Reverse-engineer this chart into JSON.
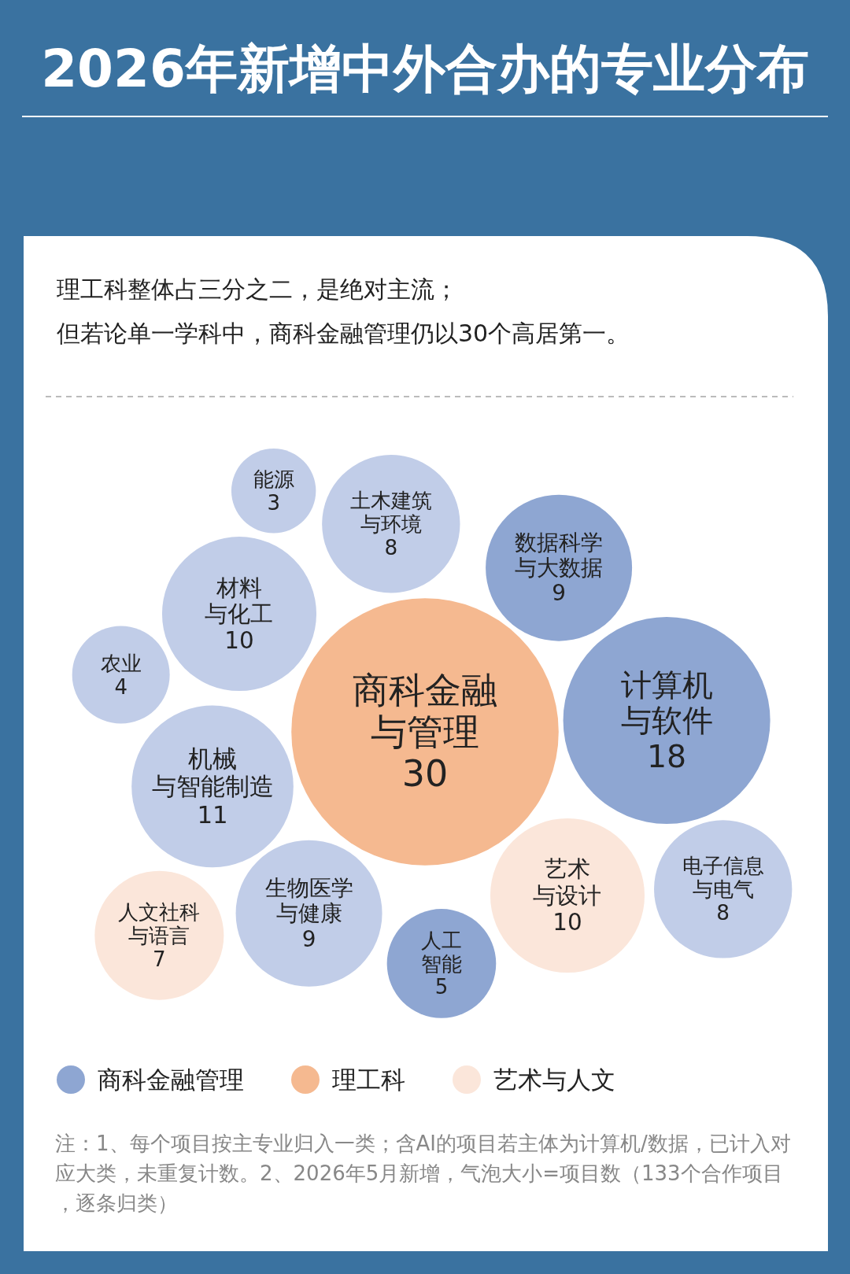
{
  "chart_data": {
    "type": "other",
    "title": "2026年新增中外合办的专业分布",
    "subtitle": "理工科整体占三分之二，是绝对主流；",
    "categories": [
      "商科金融与管理",
      "计算机与软件",
      "机械与智能制造",
      "材料与化工",
      "艺术与设计",
      "数据科学与大数据",
      "生物医学与健康",
      "土木建筑与环境",
      "电子信息与电气",
      "人文社科与语言",
      "人工智能",
      "农业",
      "能源"
    ],
    "data_labels": true,
    "series": [
      {
        "name": "商科金融管理",
        "color": "#8ea6d2",
        "values": [
          null,
          18,
          null,
          null,
          null,
          9,
          null,
          null,
          null,
          null,
          5,
          null,
          null
        ]
      },
      {
        "name": "理工科",
        "color": "#f5b990",
        "values": [
          30,
          null,
          null,
          null,
          null,
          null,
          null,
          null,
          null,
          null,
          null,
          null,
          null
        ]
      },
      {
        "name": "艺术与人文",
        "color": "#fbe6da",
        "values": [
          null,
          null,
          null,
          null,
          10,
          null,
          null,
          null,
          null,
          7,
          null,
          null,
          null
        ]
      },
      {
        "color": "#c1cde8",
        "values": [
          null,
          null,
          11,
          10,
          null,
          null,
          9,
          8,
          8,
          null,
          null,
          4,
          3
        ]
      }
    ],
    "legend": "bottom",
    "annotations": [
      "但若论单一学科中，商科金融管理仍以30个高居第一。",
      "注：1、每个项目按主专业归入一类；含AI的项目若主体为计算机/数据，已计入对应大类，未重复计数。2、2026年5月新增，气泡大小=项目数（133个合作项目，逐条归类）"
    ]
  }
}
